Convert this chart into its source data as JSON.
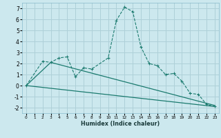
{
  "xlabel": "Humidex (Indice chaleur)",
  "bg_color": "#cce8ee",
  "grid_color": "#aed0d8",
  "line_color": "#1a7a6e",
  "xlim": [
    -0.5,
    23.5
  ],
  "ylim": [
    -2.5,
    7.5
  ],
  "yticks": [
    -2,
    -1,
    0,
    1,
    2,
    3,
    4,
    5,
    6,
    7
  ],
  "xticks": [
    0,
    1,
    2,
    3,
    4,
    5,
    6,
    7,
    8,
    9,
    10,
    11,
    12,
    13,
    14,
    15,
    16,
    17,
    18,
    19,
    20,
    21,
    22,
    23
  ],
  "series1_x": [
    0,
    2,
    3,
    4,
    5,
    6,
    7,
    8,
    10,
    11,
    12,
    13,
    14,
    15,
    16,
    17,
    18,
    19,
    20,
    21,
    22,
    23
  ],
  "series1_y": [
    0,
    2.2,
    2.1,
    2.5,
    2.6,
    0.8,
    1.6,
    1.5,
    2.5,
    5.9,
    7.1,
    6.7,
    3.5,
    2.0,
    1.8,
    1.0,
    1.1,
    0.4,
    -0.7,
    -0.8,
    -1.7,
    -1.9
  ],
  "series2_x": [
    0,
    3,
    23
  ],
  "series2_y": [
    0,
    2.1,
    -1.8
  ],
  "series3_x": [
    0,
    23
  ],
  "series3_y": [
    0,
    -1.9
  ]
}
